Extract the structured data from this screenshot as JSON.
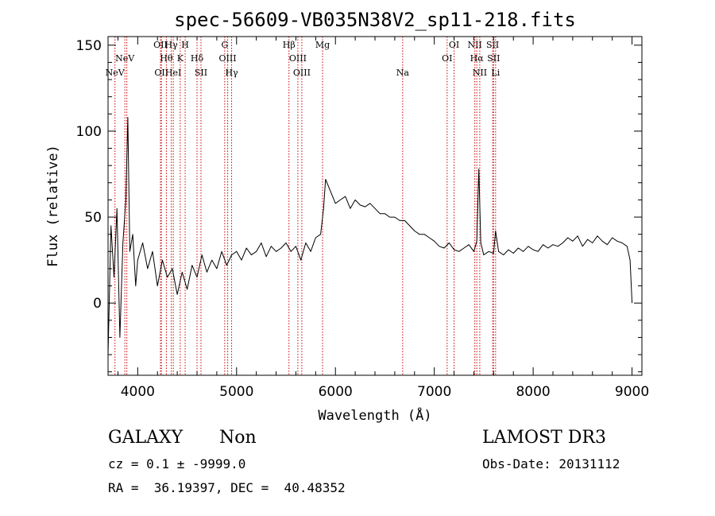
{
  "chart_data": {
    "type": "line",
    "title": "spec-56609-VB035N38V2_sp11-218.fits",
    "xlabel": "Wavelength (Å)",
    "ylabel": "Flux (relative)",
    "xlim": [
      3700,
      9100
    ],
    "ylim": [
      -42,
      155
    ],
    "x_ticks": [
      4000,
      5000,
      6000,
      7000,
      8000,
      9000
    ],
    "y_ticks": [
      0,
      50,
      100,
      150
    ],
    "grid": false,
    "series": [
      {
        "x": [
          3700,
          3730,
          3760,
          3790,
          3820,
          3850,
          3880,
          3900,
          3920,
          3950,
          3980,
          4000,
          4050,
          4100,
          4150,
          4200,
          4250,
          4300,
          4350,
          4400,
          4450,
          4500,
          4550,
          4600,
          4650,
          4700,
          4750,
          4800,
          4850,
          4900,
          4950,
          5000,
          5050,
          5100,
          5150,
          5200,
          5250,
          5300,
          5350,
          5400,
          5450,
          5500,
          5550,
          5600,
          5650,
          5700,
          5750,
          5800,
          5850,
          5880,
          5900,
          5950,
          6000,
          6050,
          6100,
          6150,
          6200,
          6250,
          6300,
          6350,
          6400,
          6450,
          6500,
          6550,
          6600,
          6650,
          6700,
          6750,
          6800,
          6850,
          6900,
          6950,
          7000,
          7050,
          7100,
          7150,
          7200,
          7250,
          7300,
          7350,
          7400,
          7430,
          7450,
          7470,
          7500,
          7550,
          7600,
          7620,
          7650,
          7700,
          7750,
          7800,
          7850,
          7900,
          7950,
          8000,
          8050,
          8100,
          8150,
          8200,
          8250,
          8300,
          8350,
          8400,
          8450,
          8500,
          8550,
          8600,
          8650,
          8700,
          8750,
          8800,
          8850,
          8900,
          8950,
          8980,
          9000
        ],
        "values": [
          -30,
          45,
          15,
          55,
          -20,
          35,
          60,
          108,
          30,
          40,
          10,
          25,
          35,
          20,
          30,
          10,
          25,
          15,
          20,
          5,
          18,
          8,
          22,
          15,
          28,
          18,
          25,
          20,
          30,
          22,
          28,
          30,
          25,
          32,
          28,
          30,
          35,
          27,
          33,
          30,
          32,
          35,
          30,
          33,
          25,
          35,
          30,
          38,
          40,
          55,
          72,
          65,
          58,
          60,
          62,
          55,
          60,
          57,
          56,
          58,
          55,
          52,
          52,
          50,
          50,
          48,
          48,
          45,
          42,
          40,
          40,
          38,
          36,
          33,
          32,
          35,
          31,
          30,
          32,
          34,
          30,
          36,
          78,
          35,
          28,
          30,
          29,
          42,
          30,
          28,
          31,
          29,
          32,
          30,
          33,
          31,
          30,
          34,
          32,
          34,
          33,
          35,
          38,
          36,
          39,
          33,
          37,
          35,
          39,
          36,
          34,
          38,
          36,
          35,
          33,
          25,
          0
        ]
      }
    ],
    "lines": [
      {
        "x": 3770,
        "label": "NeV",
        "row": 3
      },
      {
        "x": 3870,
        "label": "NeV",
        "row": 2
      },
      {
        "x": 3890,
        "label": "",
        "row": 0
      },
      {
        "x": 4230,
        "label": "OII",
        "row": 1
      },
      {
        "x": 4240,
        "label": "OII",
        "row": 3
      },
      {
        "x": 4290,
        "label": "Hθ",
        "row": 2
      },
      {
        "x": 4340,
        "label": "Hγ",
        "row": 1
      },
      {
        "x": 4360,
        "label": "HeI",
        "row": 3
      },
      {
        "x": 4430,
        "label": "K",
        "row": 2
      },
      {
        "x": 4480,
        "label": "H",
        "row": 1
      },
      {
        "x": 4600,
        "label": "Hδ",
        "row": 2
      },
      {
        "x": 4640,
        "label": "SII",
        "row": 3
      },
      {
        "x": 4880,
        "label": "G",
        "row": 1
      },
      {
        "x": 4910,
        "label": "OIII",
        "row": 2
      },
      {
        "x": 4950,
        "label": "Hγ",
        "row": 3
      },
      {
        "x": 5530,
        "label": "Hβ",
        "row": 1
      },
      {
        "x": 5620,
        "label": "OIII",
        "row": 2
      },
      {
        "x": 5660,
        "label": "OIII",
        "row": 3
      },
      {
        "x": 5870,
        "label": "Mg",
        "row": 1
      },
      {
        "x": 6680,
        "label": "Na",
        "row": 3
      },
      {
        "x": 7130,
        "label": "OI",
        "row": 2
      },
      {
        "x": 7200,
        "label": "OI",
        "row": 1
      },
      {
        "x": 7410,
        "label": "NII",
        "row": 1
      },
      {
        "x": 7430,
        "label": "Hα",
        "row": 2
      },
      {
        "x": 7460,
        "label": "NII",
        "row": 3
      },
      {
        "x": 7590,
        "label": "SII",
        "row": 1
      },
      {
        "x": 7600,
        "label": "SII",
        "row": 2
      },
      {
        "x": 7620,
        "label": "Li",
        "row": 3
      }
    ]
  },
  "info": {
    "class_label": "GALAXY",
    "subclass_label": "Non",
    "survey": "LAMOST DR3",
    "cz": "cz = 0.1 ± -9999.0",
    "obs_date": "Obs-Date: 20131112",
    "radec": "RA =  36.19397, DEC =  40.48352"
  },
  "colors": {
    "spectrum": "#000000",
    "line_markers": "#cc0000",
    "background": "#ffffff"
  }
}
